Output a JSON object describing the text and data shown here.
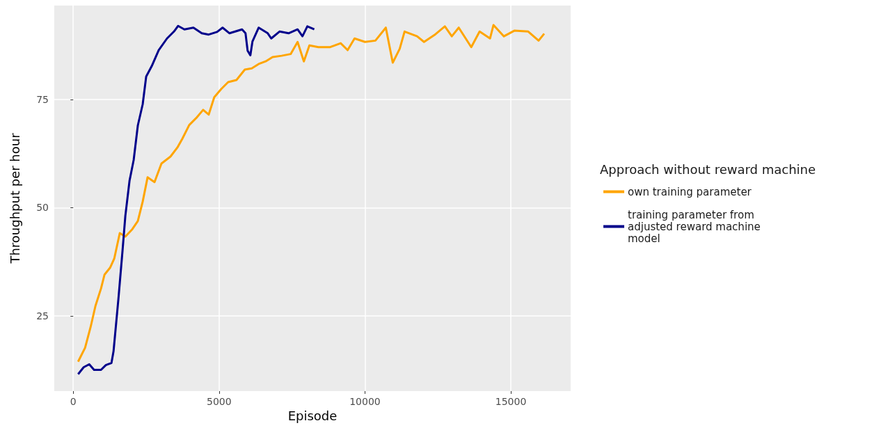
{
  "chart_data": {
    "type": "line",
    "xlabel": "Episode",
    "ylabel": "Throughput per hour",
    "legend_title": "Approach without reward machine",
    "xlim": [
      -650,
      17050
    ],
    "ylim": [
      7.6,
      96.7
    ],
    "xticks": [
      0,
      5000,
      10000,
      15000
    ],
    "yticks": [
      25,
      50,
      75
    ],
    "grid": true,
    "legend": "right",
    "marker": "none",
    "line_style": "solid",
    "series": [
      {
        "name": "own training parameter",
        "color": "#ffa500",
        "x": [
          167,
          405,
          595,
          762,
          952,
          1071,
          1262,
          1405,
          1595,
          1786,
          2024,
          2214,
          2381,
          2548,
          2786,
          3024,
          3333,
          3571,
          3738,
          3976,
          4214,
          4452,
          4643,
          4833,
          5071,
          5310,
          5595,
          5881,
          6119,
          6357,
          6595,
          6833,
          7143,
          7452,
          7690,
          7905,
          8095,
          8405,
          8810,
          9167,
          9405,
          9643,
          10000,
          10357,
          10714,
          10952,
          11190,
          11357,
          11786,
          12024,
          12381,
          12738,
          12976,
          13214,
          13643,
          13929,
          14286,
          14405,
          14762,
          15119,
          15595,
          15952,
          16143
        ],
        "values": [
          14.4,
          17.6,
          22.4,
          27.3,
          31.3,
          34.5,
          36.1,
          38.2,
          44.1,
          43.3,
          45.0,
          46.9,
          51.4,
          57.0,
          55.9,
          60.2,
          61.8,
          63.9,
          65.9,
          69.1,
          70.7,
          72.6,
          71.5,
          75.5,
          77.4,
          79.0,
          79.5,
          81.9,
          82.2,
          83.2,
          83.8,
          84.8,
          85.1,
          85.5,
          88.3,
          83.8,
          87.5,
          87.1,
          87.1,
          88.0,
          86.4,
          89.1,
          88.3,
          88.6,
          91.6,
          83.5,
          86.7,
          90.7,
          89.6,
          88.3,
          89.9,
          91.9,
          89.6,
          91.6,
          87.1,
          90.7,
          89.1,
          92.2,
          89.6,
          90.9,
          90.7,
          88.6,
          90.2
        ]
      },
      {
        "name": "training parameter from adjusted reward machine model",
        "color": "#00008b",
        "x": [
          167,
          357,
          548,
          714,
          952,
          1119,
          1310,
          1381,
          1548,
          1690,
          1786,
          1929,
          2071,
          2214,
          2381,
          2500,
          2690,
          2929,
          3214,
          3452,
          3595,
          3810,
          4119,
          4405,
          4643,
          4929,
          5119,
          5357,
          5786,
          5905,
          5976,
          6071,
          6143,
          6357,
          6667,
          6786,
          7071,
          7381,
          7690,
          7857,
          8024,
          8262
        ],
        "values": [
          11.5,
          13.1,
          13.8,
          12.5,
          12.5,
          13.6,
          14.1,
          16.8,
          28.9,
          40.1,
          48.1,
          56.2,
          61.0,
          69.0,
          73.9,
          80.3,
          82.7,
          86.4,
          89.1,
          90.7,
          92.0,
          91.2,
          91.6,
          90.3,
          90.0,
          90.6,
          91.6,
          90.3,
          91.2,
          90.3,
          86.3,
          85.2,
          88.4,
          91.6,
          90.3,
          89.1,
          90.7,
          90.3,
          91.2,
          89.6,
          91.9,
          91.2
        ]
      }
    ]
  }
}
